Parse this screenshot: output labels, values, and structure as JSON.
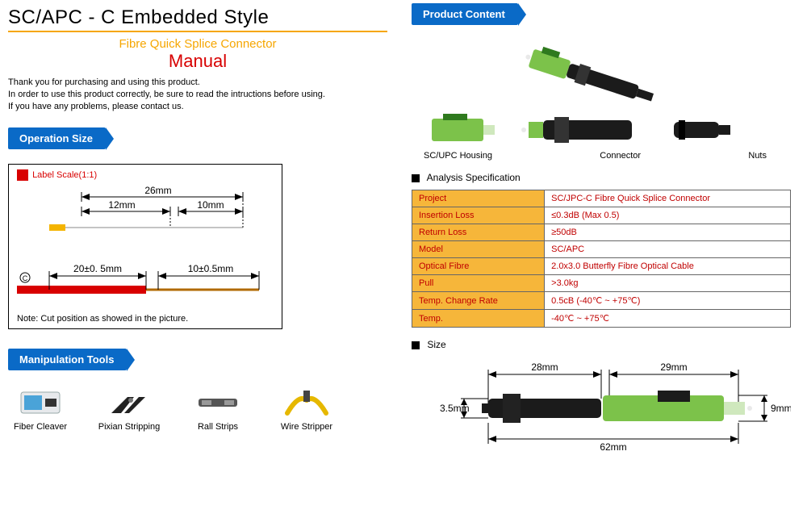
{
  "left": {
    "title": "SC/APC - C Embedded Style",
    "subtitle": "Fibre Quick Splice Connector",
    "manual": "Manual",
    "intro_l1": "Thank you for purchasing and using this product.",
    "intro_l2": "In order to use this product correctly, be sure to read the intructions before using.",
    "intro_l3": "If you have any problems, please contact us.",
    "section_opsize": "Operation Size",
    "label_scale": "Label Scale(1:1)",
    "dim_26": "26mm",
    "dim_12": "12mm",
    "dim_10": "10mm",
    "dim_20p": "20±0. 5mm",
    "dim_10p": "10±0.5mm",
    "note": "Note: Cut position as showed in the picture.",
    "section_tools": "Manipulation Tools",
    "tools": [
      {
        "label": "Fiber Cleaver"
      },
      {
        "label": "Pixian Stripping"
      },
      {
        "label": "Rall Strips"
      },
      {
        "label": "Wire Stripper"
      }
    ]
  },
  "right": {
    "section_content": "Product Content",
    "parts": {
      "housing": "SC/UPC Housing",
      "connector": "Connector",
      "nuts": "Nuts"
    },
    "spec_heading": "Analysis Specification",
    "spec": [
      {
        "k": "Project",
        "v": "SC/JPC-C Fibre Quick Splice Connector"
      },
      {
        "k": "Insertion Loss",
        "v": "≤0.3dB (Max 0.5)"
      },
      {
        "k": "Return Loss",
        "v": "≥50dB"
      },
      {
        "k": "Model",
        "v": "SC/APC"
      },
      {
        "k": "Optical Fibre",
        "v": "2.0x3.0 Butterfly Fibre Optical Cable"
      },
      {
        "k": "Pull",
        "v": ">3.0kg"
      },
      {
        "k": "Temp. Change Rate",
        "v": "0.5cB (-40℃ ~ +75℃)"
      },
      {
        "k": "Temp.",
        "v": "-40℃ ~ +75℃"
      }
    ],
    "size_heading": "Size",
    "size": {
      "left": "28mm",
      "right": "29mm",
      "h_left": "3.5mm",
      "h_right": "9mm",
      "total": "62mm"
    },
    "colors": {
      "blue": "#0a6ac7",
      "orange": "#f6a600",
      "red": "#d80000",
      "cell_bg": "#f6b63a",
      "cell_text": "#c00000",
      "conn_green": "#7cc24a",
      "conn_black": "#1b1b1b",
      "conn_grey": "#9d9d9d",
      "fibre_yellow": "#f4b400"
    }
  }
}
